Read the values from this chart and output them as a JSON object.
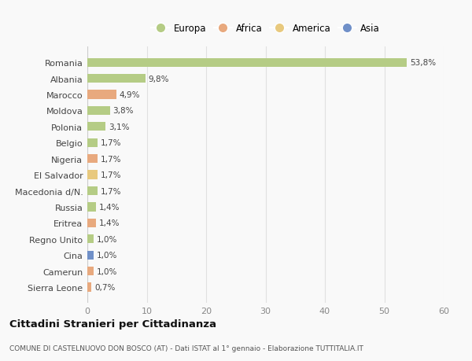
{
  "categories": [
    "Romania",
    "Albania",
    "Marocco",
    "Moldova",
    "Polonia",
    "Belgio",
    "Nigeria",
    "El Salvador",
    "Macedonia d/N.",
    "Russia",
    "Eritrea",
    "Regno Unito",
    "Cina",
    "Camerun",
    "Sierra Leone"
  ],
  "values": [
    53.8,
    9.8,
    4.9,
    3.8,
    3.1,
    1.7,
    1.7,
    1.7,
    1.7,
    1.4,
    1.4,
    1.0,
    1.0,
    1.0,
    0.7
  ],
  "labels": [
    "53,8%",
    "9,8%",
    "4,9%",
    "3,8%",
    "3,1%",
    "1,7%",
    "1,7%",
    "1,7%",
    "1,7%",
    "1,4%",
    "1,4%",
    "1,0%",
    "1,0%",
    "1,0%",
    "0,7%"
  ],
  "colors": [
    "#b5cc85",
    "#b5cc85",
    "#e8a97e",
    "#b5cc85",
    "#b5cc85",
    "#b5cc85",
    "#e8a97e",
    "#e8c97e",
    "#b5cc85",
    "#b5cc85",
    "#e8a97e",
    "#b5cc85",
    "#7090c8",
    "#e8a97e",
    "#e8a97e"
  ],
  "legend_labels": [
    "Europa",
    "Africa",
    "America",
    "Asia"
  ],
  "legend_colors": [
    "#b5cc85",
    "#e8a97e",
    "#e8c97e",
    "#7090c8"
  ],
  "title": "Cittadini Stranieri per Cittadinanza",
  "subtitle": "COMUNE DI CASTELNUOVO DON BOSCO (AT) - Dati ISTAT al 1° gennaio - Elaborazione TUTTITALIA.IT",
  "xlim": [
    0,
    60
  ],
  "xticks": [
    0,
    10,
    20,
    30,
    40,
    50,
    60
  ],
  "background_color": "#f9f9f9",
  "grid_color": "#e0e0e0",
  "bar_height": 0.55
}
